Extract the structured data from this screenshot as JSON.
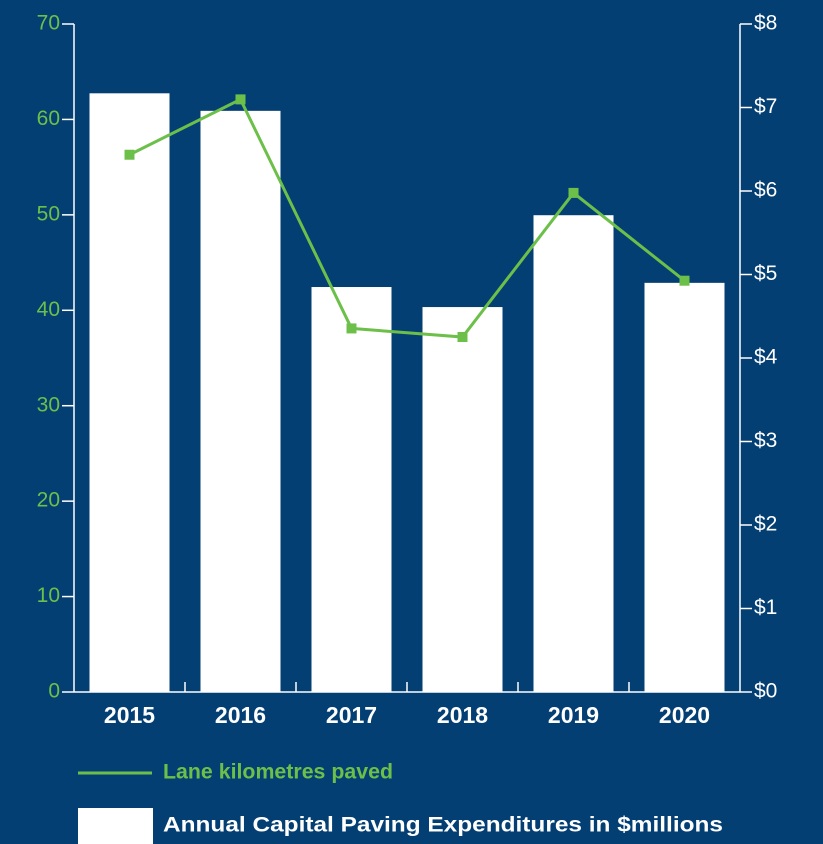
{
  "chart_data": {
    "type": "bar",
    "categories": [
      "2015",
      "2016",
      "2017",
      "2018",
      "2019",
      "2020"
    ],
    "series": [
      {
        "name": "Lane kilometres paved",
        "type": "line",
        "color": "#6cc04a",
        "values": [
          56.3,
          62.1,
          38.1,
          37.2,
          52.3,
          43.1
        ]
      },
      {
        "name": "Annual Capital Paving Expenditures in $millions",
        "type": "bar",
        "axis": "y2",
        "color": "#ffffff",
        "values": [
          7.17,
          6.96,
          4.85,
          4.61,
          5.71,
          4.9
        ]
      }
    ],
    "ylim": [
      0,
      70
    ],
    "yticks": [
      0,
      10,
      20,
      30,
      40,
      50,
      60,
      70
    ],
    "y2lim": [
      0,
      8
    ],
    "y2ticks": [
      {
        "value": 0,
        "label": "$0"
      },
      {
        "value": 1,
        "label": "$1"
      },
      {
        "value": 2,
        "label": "$2"
      },
      {
        "value": 3,
        "label": "$3"
      },
      {
        "value": 4,
        "label": "$4"
      },
      {
        "value": 5,
        "label": "$5"
      },
      {
        "value": 6,
        "label": "$6"
      },
      {
        "value": 7,
        "label": "$7"
      },
      {
        "value": 8,
        "label": "$8"
      }
    ],
    "background": "#043f74",
    "axis_color": "#ffffff",
    "left_tick_color": "#6cc04a"
  }
}
